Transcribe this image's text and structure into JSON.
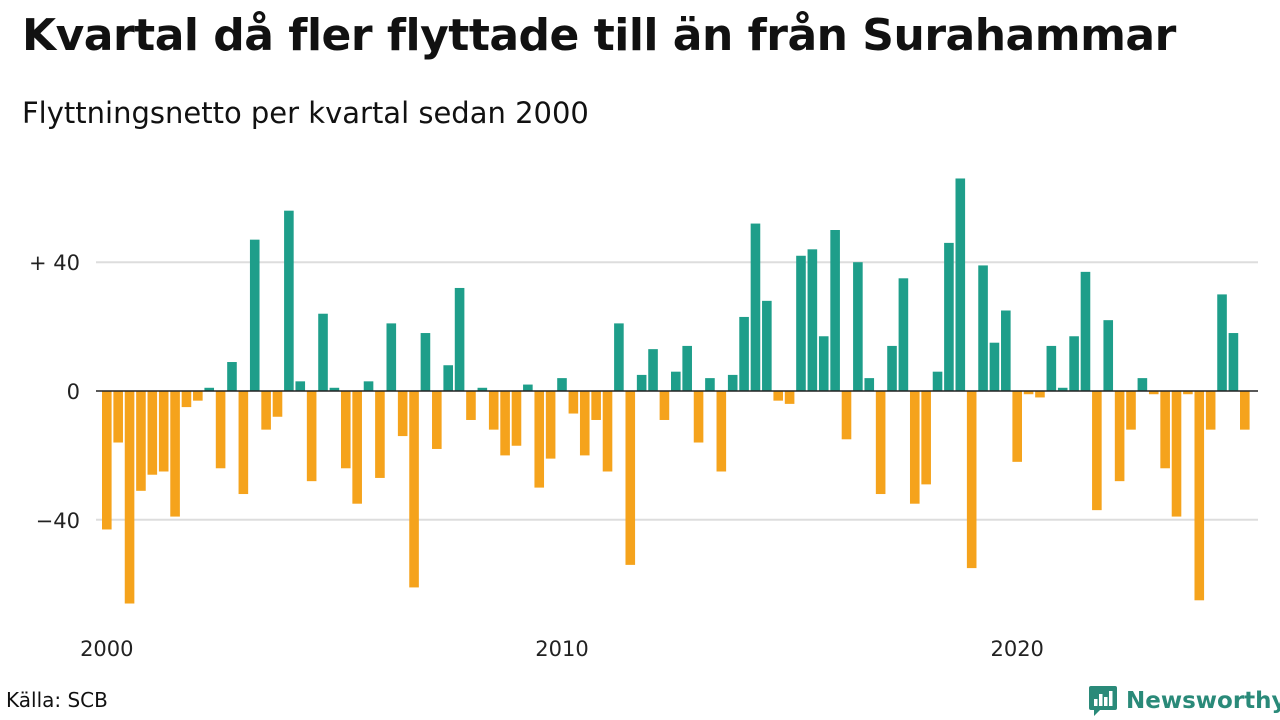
{
  "title": "Kvartal då fler flyttade till än från Surahammar",
  "subtitle": "Flyttningsnetto per kvartal sedan 2000",
  "source": "Källa: SCB",
  "brand": {
    "name": "Newsworthy",
    "icon": "bar-chart-logo-icon",
    "color": "#2a8a79"
  },
  "colors": {
    "positive": "#1e9e8a",
    "negative": "#f5a31c",
    "grid": "#dddddd",
    "zero_line": "#222222"
  },
  "chart_data": {
    "type": "bar",
    "start_year": 2000,
    "start_quarter": 1,
    "ylim": [
      -68,
      68
    ],
    "grid": true,
    "yticks": [
      {
        "value": 40,
        "label": "+ 40"
      },
      {
        "value": 0,
        "label": "0"
      },
      {
        "value": -40,
        "label": "−40"
      }
    ],
    "xticks": [
      {
        "year": 2000,
        "label": "2000"
      },
      {
        "year": 2010,
        "label": "2010"
      },
      {
        "year": 2020,
        "label": "2020"
      }
    ],
    "values": [
      -43,
      -16,
      -66,
      -31,
      -26,
      -25,
      -39,
      -5,
      -3,
      1,
      -24,
      9,
      -32,
      47,
      -12,
      -8,
      56,
      3,
      -28,
      24,
      1,
      -24,
      -35,
      3,
      -27,
      21,
      -14,
      -61,
      18,
      -18,
      8,
      32,
      -9,
      1,
      -12,
      -20,
      -17,
      2,
      -30,
      -21,
      4,
      -7,
      -20,
      -9,
      -25,
      21,
      -54,
      5,
      13,
      -9,
      6,
      14,
      -16,
      4,
      -25,
      5,
      23,
      52,
      28,
      -3,
      -4,
      42,
      44,
      17,
      50,
      -15,
      40,
      4,
      -32,
      14,
      35,
      -35,
      -29,
      6,
      46,
      66,
      -55,
      39,
      15,
      25,
      -22,
      -1,
      -2,
      14,
      1,
      17,
      37,
      -37,
      22,
      -28,
      -12,
      4,
      -1,
      -24,
      -39,
      -1,
      -65,
      -12,
      30,
      18,
      -12
    ]
  }
}
